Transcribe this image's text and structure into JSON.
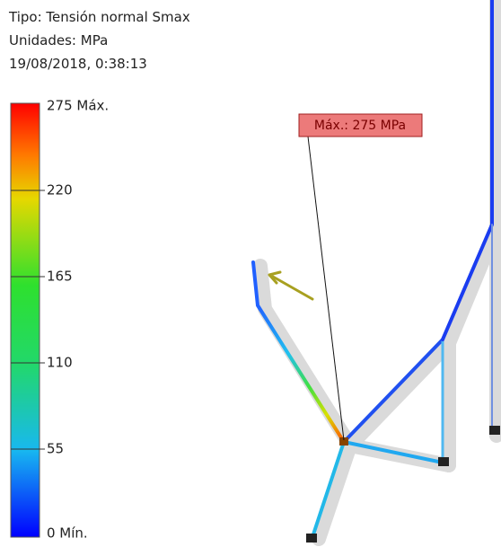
{
  "header": {
    "type": "Tipo: Tensión normal Smax",
    "units": "Unidades: MPa",
    "date": "19/08/2018, 0:38:13"
  },
  "legend": {
    "labels": [
      "275 Máx.",
      "220",
      "165",
      "110",
      "55",
      "0 Mín."
    ]
  },
  "callout": {
    "label": "Máx.: 275 MPa"
  }
}
